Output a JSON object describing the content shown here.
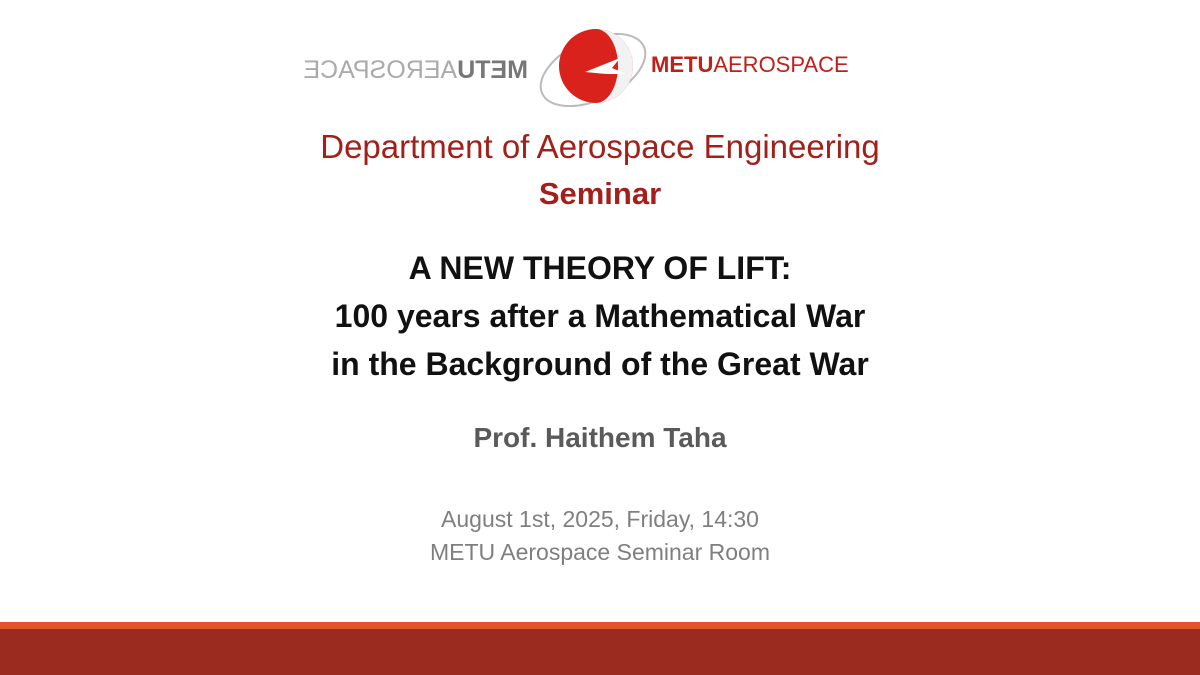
{
  "logo": {
    "brand_bold": "METU",
    "brand_rest": "AEROSPACE"
  },
  "header": {
    "department": "Department of Aerospace Engineering",
    "event": "Seminar"
  },
  "talk": {
    "title_lines": [
      "A NEW THEORY OF LIFT:",
      "100 years after a Mathematical War",
      "in the Background of the Great War"
    ],
    "speaker": "Prof. Haithem Taha"
  },
  "details": {
    "datetime": "August 1st, 2025, Friday, 14:30",
    "venue": "METU Aerospace Seminar Room"
  }
}
